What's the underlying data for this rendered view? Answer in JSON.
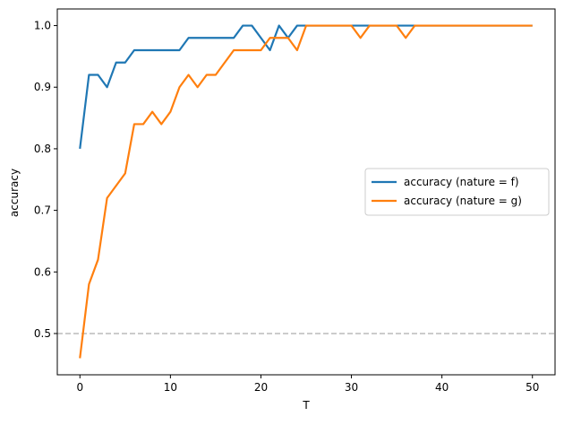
{
  "chart_data": {
    "type": "line",
    "xlabel": "T",
    "ylabel": "accuracy",
    "x": [
      0,
      1,
      2,
      3,
      4,
      5,
      6,
      7,
      8,
      9,
      10,
      11,
      12,
      13,
      14,
      15,
      16,
      17,
      18,
      19,
      20,
      21,
      22,
      23,
      24,
      25,
      26,
      27,
      28,
      29,
      30,
      31,
      32,
      33,
      34,
      35,
      36,
      37,
      38,
      39,
      40,
      41,
      42,
      43,
      44,
      45,
      46,
      47,
      48,
      49,
      50
    ],
    "series": [
      {
        "name": "accuracy (nature = f)",
        "color": "#1f77b4",
        "values": [
          0.8,
          0.92,
          0.92,
          0.9,
          0.94,
          0.94,
          0.96,
          0.96,
          0.96,
          0.96,
          0.96,
          0.96,
          0.98,
          0.98,
          0.98,
          0.98,
          0.98,
          0.98,
          1.0,
          1.0,
          0.98,
          0.96,
          1.0,
          0.98,
          1.0,
          1.0,
          1.0,
          1.0,
          1.0,
          1.0,
          1.0,
          1.0,
          1.0,
          1.0,
          1.0,
          1.0,
          1.0,
          1.0,
          1.0,
          1.0,
          1.0,
          1.0,
          1.0,
          1.0,
          1.0,
          1.0,
          1.0,
          1.0,
          1.0,
          1.0,
          1.0
        ]
      },
      {
        "name": "accuracy (nature = g)",
        "color": "#ff7f0e",
        "values": [
          0.46,
          0.58,
          0.62,
          0.72,
          0.74,
          0.76,
          0.84,
          0.84,
          0.86,
          0.84,
          0.86,
          0.9,
          0.92,
          0.9,
          0.92,
          0.92,
          0.94,
          0.96,
          0.96,
          0.96,
          0.96,
          0.98,
          0.98,
          0.98,
          0.96,
          1.0,
          1.0,
          1.0,
          1.0,
          1.0,
          1.0,
          0.98,
          1.0,
          1.0,
          1.0,
          1.0,
          0.98,
          1.0,
          1.0,
          1.0,
          1.0,
          1.0,
          1.0,
          1.0,
          1.0,
          1.0,
          1.0,
          1.0,
          1.0,
          1.0,
          1.0
        ]
      }
    ],
    "xlim": [
      -2.5,
      52.5
    ],
    "xticks": [
      0,
      10,
      20,
      30,
      40,
      50
    ],
    "ylim": [
      0.433,
      1.027
    ],
    "yticks": [
      0.5,
      0.6,
      0.7,
      0.8,
      0.9,
      {
        "value": 1.0,
        "label": "1.0"
      }
    ],
    "reference_line": 0.5,
    "reference_color": "#bbbbbb",
    "legend": "center right",
    "grid": false
  }
}
